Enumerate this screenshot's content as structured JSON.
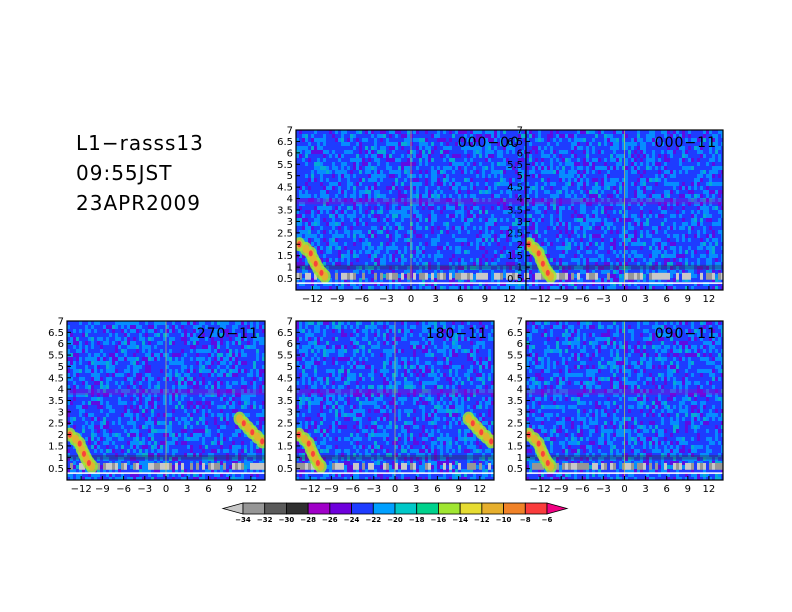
{
  "header": {
    "station": "L1−rasss13",
    "time": "09:55JST",
    "date": "23APR2009"
  },
  "chart_data": {
    "type": "heatmap",
    "xlim": [
      -14,
      14
    ],
    "ylim": [
      0,
      7
    ],
    "xticks": [
      -12,
      -9,
      -6,
      -3,
      0,
      3,
      6,
      9,
      12
    ],
    "xtick_labels": [
      "−12",
      "−9",
      "−6",
      "−3",
      "0",
      "3",
      "6",
      "9",
      "12"
    ],
    "yticks": [
      0.5,
      1,
      1.5,
      2,
      2.5,
      3,
      3.5,
      4,
      4.5,
      5,
      5.5,
      6,
      6.5,
      7
    ],
    "ytick_labels": [
      "0.5",
      "1",
      "1.5",
      "2",
      "2.5",
      "3",
      "3.5",
      "4",
      "4.5",
      "5",
      "5.5",
      "6",
      "6.5",
      "7"
    ],
    "panels": [
      {
        "label": "000−00",
        "feature": "left-band"
      },
      {
        "label": "000−11",
        "feature": "left-band"
      },
      {
        "label": "270−11",
        "feature": "both-bands"
      },
      {
        "label": "180−11",
        "feature": "both-bands"
      },
      {
        "label": "090−11",
        "feature": "left-band"
      }
    ],
    "colorbar": {
      "levels": [
        -34,
        -32,
        -30,
        -28,
        -26,
        -24,
        -22,
        -20,
        -18,
        -16,
        -14,
        -12,
        -10,
        -8,
        -6
      ],
      "level_labels": [
        "−34",
        "−32",
        "−30",
        "−28",
        "−26",
        "−24",
        "−22",
        "−20",
        "−18",
        "−16",
        "−14",
        "−12",
        "−10",
        "−8",
        "−6"
      ],
      "colors": [
        "#c8c8c8",
        "#969696",
        "#5a5a5a",
        "#303030",
        "#a000c8",
        "#6e00dc",
        "#1e3cff",
        "#00a0ff",
        "#00c8c8",
        "#00d28c",
        "#a0e632",
        "#e6dc32",
        "#e6af2d",
        "#f08228",
        "#fa3c3c",
        "#f00082"
      ]
    },
    "colors": {
      "noise_low": "#1e3cff",
      "noise_high": "#00a0ff",
      "echo": "#fa3c3c",
      "ground": "#c8c8c8",
      "frame": "#000000"
    }
  }
}
